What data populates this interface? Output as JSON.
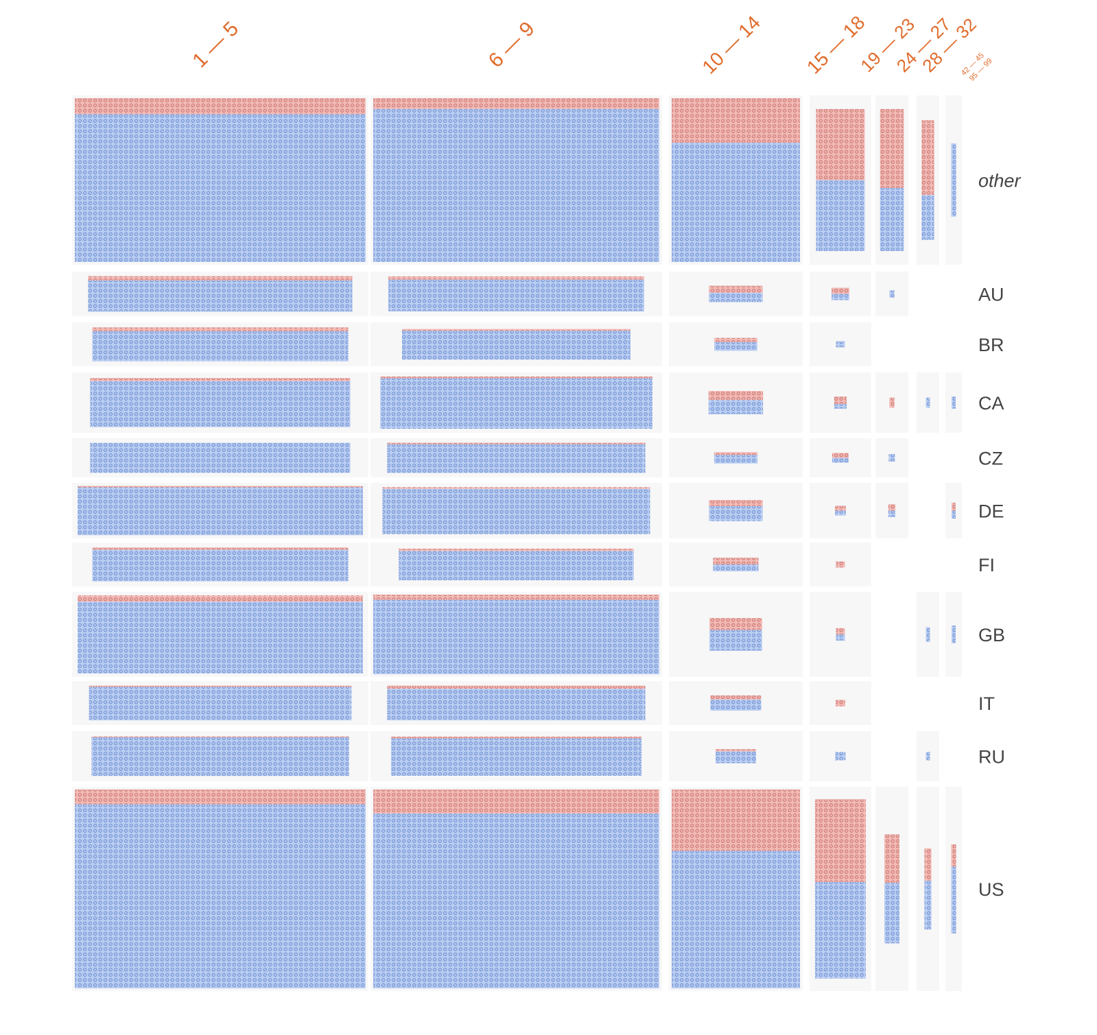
{
  "colors": {
    "cell_background": "#f7f7f7",
    "blue_fill": "#b9cdf2",
    "blue_texture": "#3f67ba",
    "red_fill": "#f2b9b5",
    "red_texture": "#b04b44",
    "header_text": "#e06c2c",
    "row_label_text": "#444444"
  },
  "chart_data": {
    "type": "grouped unit mosaic",
    "column_headers": [
      "1 — 5",
      "6 — 9",
      "10 — 14",
      "15 — 18",
      "19 — 23",
      "24 — 27",
      "28 — 32"
    ],
    "extra_header_lines": [
      "42 — 45",
      "95 — 99"
    ],
    "row_labels": [
      "other",
      "AU",
      "BR",
      "CA",
      "CZ",
      "DE",
      "FI",
      "GB",
      "IT",
      "RU",
      "US"
    ],
    "row_label_styles": [
      "italic",
      "normal",
      "normal",
      "normal",
      "normal",
      "normal",
      "normal",
      "normal",
      "normal",
      "normal",
      "normal"
    ],
    "series": [
      {
        "color": "blue",
        "meaning": "majority group (blue tiles)"
      },
      {
        "color": "red",
        "meaning": "minority group (red tiles)"
      }
    ],
    "column_max_count": [
      2400,
      2400,
      600,
      160,
      60,
      30,
      20
    ],
    "row_max_count": [
      2400,
      80,
      80,
      200,
      70,
      160,
      80,
      260,
      70,
      120,
      3500
    ],
    "cells": [
      [
        {
          "blue": 2200,
          "red": 240
        },
        {
          "blue": 2250,
          "red": 160
        },
        {
          "blue": 480,
          "red": 180
        },
        {
          "blue": 60,
          "red": 60
        },
        {
          "blue": 20,
          "red": 25
        },
        {
          "blue": 6,
          "red": 10
        },
        {
          "blue": 4,
          "red": 0
        }
      ],
      [
        {
          "blue": 58,
          "red": 8
        },
        {
          "blue": 58,
          "red": 6
        },
        {
          "blue": 8,
          "red": 6
        },
        {
          "blue": 4,
          "red": 4
        },
        {
          "blue": 2,
          "red": 0
        },
        null,
        null
      ],
      [
        {
          "blue": 55,
          "red": 7
        },
        {
          "blue": 48,
          "red": 3
        },
        {
          "blue": 6,
          "red": 3
        },
        {
          "blue": 2,
          "red": 0
        },
        null,
        null,
        null
      ],
      [
        {
          "blue": 150,
          "red": 10
        },
        {
          "blue": 175,
          "red": 6
        },
        {
          "blue": 22,
          "red": 14
        },
        {
          "blue": 3,
          "red": 5
        },
        {
          "blue": 0,
          "red": 2
        },
        {
          "blue": 1,
          "red": 0
        },
        {
          "blue": 1,
          "red": 0
        }
      ],
      [
        {
          "blue": 56,
          "red": 0
        },
        {
          "blue": 54,
          "red": 3
        },
        {
          "blue": 6,
          "red": 2
        },
        {
          "blue": 3,
          "red": 3
        },
        {
          "blue": 3,
          "red": 0
        },
        null,
        null
      ],
      [
        {
          "blue": 150,
          "red": 4
        },
        {
          "blue": 135,
          "red": 5
        },
        {
          "blue": 20,
          "red": 8
        },
        {
          "blue": 3,
          "red": 3
        },
        {
          "blue": 2,
          "red": 2
        },
        null,
        {
          "blue": 1,
          "red": 1
        }
      ],
      [
        {
          "blue": 58,
          "red": 4
        },
        {
          "blue": 50,
          "red": 4
        },
        {
          "blue": 5,
          "red": 5
        },
        {
          "blue": 0,
          "red": 2
        },
        null,
        null,
        null
      ],
      [
        {
          "blue": 230,
          "red": 20
        },
        {
          "blue": 255,
          "red": 18
        },
        {
          "blue": 28,
          "red": 16
        },
        {
          "blue": 2,
          "red": 2
        },
        null,
        {
          "blue": 1,
          "red": 0
        },
        {
          "blue": 1,
          "red": 0
        }
      ],
      [
        {
          "blue": 55,
          "red": 2
        },
        {
          "blue": 52,
          "red": 5
        },
        {
          "blue": 8,
          "red": 3
        },
        {
          "blue": 0,
          "red": 2
        },
        null,
        null,
        null
      ],
      [
        {
          "blue": 92,
          "red": 2
        },
        {
          "blue": 88,
          "red": 4
        },
        {
          "blue": 10,
          "red": 2
        },
        {
          "blue": 4,
          "red": 0
        },
        null,
        {
          "blue": 1,
          "red": 0
        },
        null
      ],
      [
        {
          "blue": 3100,
          "red": 250
        },
        {
          "blue": 2900,
          "red": 400
        },
        {
          "blue": 470,
          "red": 210
        },
        {
          "blue": 70,
          "red": 60
        },
        {
          "blue": 10,
          "red": 8
        },
        {
          "blue": 3,
          "red": 2
        },
        {
          "blue": 3,
          "red": 1
        }
      ]
    ]
  }
}
